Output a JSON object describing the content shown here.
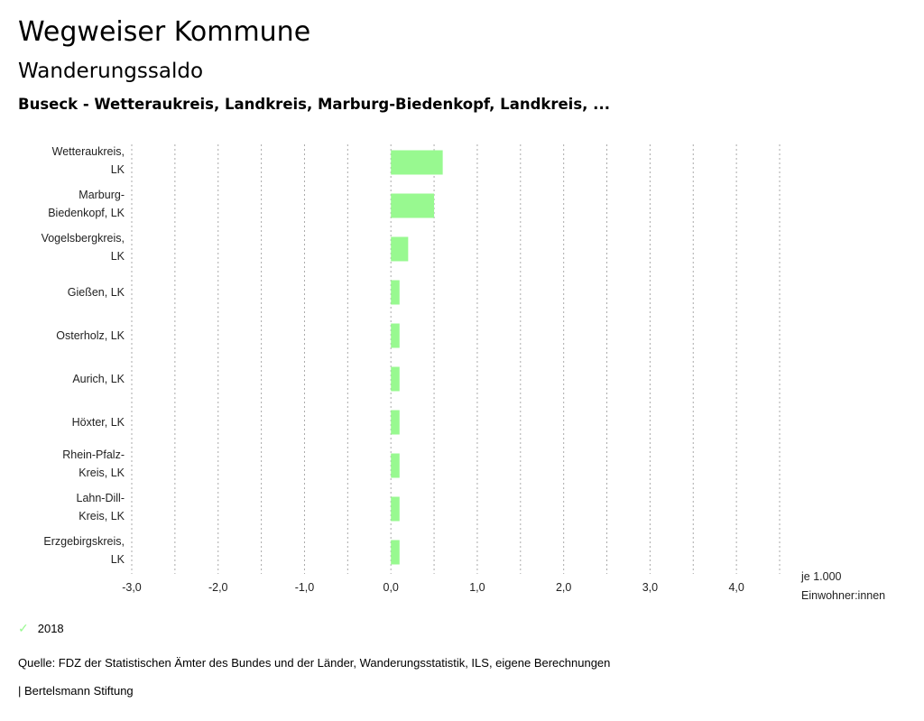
{
  "header": {
    "title": "Wegweiser Kommune",
    "subtitle": "Wanderungssaldo",
    "selection": "Buseck - Wetteraukreis, Landkreis, Marburg-Biedenkopf, Landkreis, ..."
  },
  "chart_data": {
    "type": "bar",
    "orientation": "horizontal",
    "categories": [
      [
        "Wetteraukreis,",
        "LK"
      ],
      [
        "Marburg-",
        "Biedenkopf, LK"
      ],
      [
        "Vogelsbergkreis,",
        "LK"
      ],
      [
        "Gießen, LK"
      ],
      [
        "Osterholz, LK"
      ],
      [
        "Aurich, LK"
      ],
      [
        "Höxter, LK"
      ],
      [
        "Rhein-Pfalz-",
        "Kreis, LK"
      ],
      [
        "Lahn-Dill-",
        "Kreis, LK"
      ],
      [
        "Erzgebirgskreis,",
        "LK"
      ]
    ],
    "series": [
      {
        "name": "2018",
        "color": "#98f990",
        "values": [
          0.6,
          0.5,
          0.2,
          0.1,
          0.1,
          0.1,
          0.1,
          0.1,
          0.1,
          0.1
        ]
      }
    ],
    "xlim": [
      -3.0,
      4.5
    ],
    "xticks": [
      -3,
      -2,
      -1,
      0,
      1,
      2,
      3,
      4
    ],
    "xtick_labels": [
      "-3,0",
      "-2,0",
      "-1,0",
      "0,0",
      "1,0",
      "2,0",
      "3,0",
      "4,0"
    ],
    "grid_step": 0.5,
    "xlabel": [
      "je 1.000",
      "Einwohner:innen"
    ],
    "legend": "bottom-left"
  },
  "footer": {
    "source": "Quelle: FDZ der Statistischen Ämter des Bundes und der Länder, Wanderungsstatistik, ILS, eigene Berechnungen",
    "brand": "| Bertelsmann Stiftung"
  }
}
